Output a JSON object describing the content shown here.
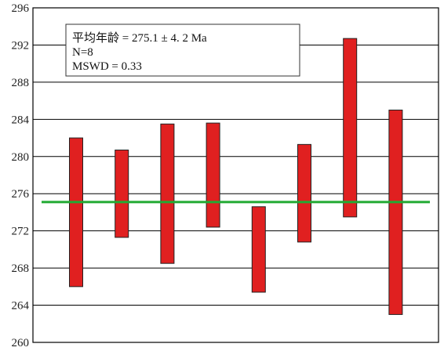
{
  "chart_data": {
    "type": "bar",
    "chart_kind": "weighted-mean error bars",
    "y_ticks": [
      "260",
      "264",
      "268",
      "272",
      "276",
      "280",
      "284",
      "288",
      "292",
      "296"
    ],
    "ylim": [
      260,
      296
    ],
    "grid": "horizontal",
    "bars": [
      {
        "low": 266.0,
        "high": 282.0
      },
      {
        "low": 271.3,
        "high": 280.7
      },
      {
        "low": 268.5,
        "high": 283.5
      },
      {
        "low": 272.4,
        "high": 283.6
      },
      {
        "low": 265.4,
        "high": 274.6
      },
      {
        "low": 270.8,
        "high": 281.3
      },
      {
        "low": 273.5,
        "high": 292.7
      },
      {
        "low": 263.0,
        "high": 285.0
      }
    ],
    "mean": 275.1,
    "colors": {
      "bar": "#e02020",
      "mean_line": "#22aa33",
      "grid": "#000000"
    },
    "annotation": {
      "line1": "平均年龄 = 275.1 ± 4. 2 Ma",
      "line2": "N=8",
      "line3": "MSWD = 0.33"
    }
  }
}
